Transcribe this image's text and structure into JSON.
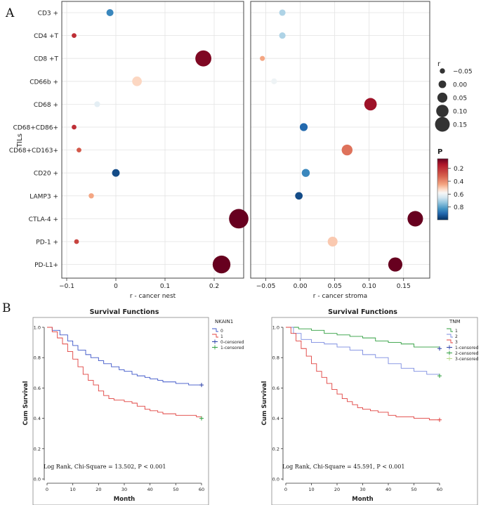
{
  "panel_labels": {
    "a": "A",
    "b": "B"
  },
  "chart_data": [
    {
      "type": "scatter",
      "subtype": "bubble",
      "title": "",
      "ylabel": "TILs",
      "categories": [
        "CD3 +",
        "CD4 +T",
        "CD8 +T",
        "CD66b +",
        "CD68 +",
        "CD68+CD86+",
        "CD68+CD163+",
        "CD20 +",
        "LAMP3 +",
        "CTLA-4 +",
        "PD-1 +",
        "PD-L1+"
      ],
      "panels": [
        {
          "xlabel": "r - cancer nest",
          "xlim": [
            -0.11,
            0.26
          ],
          "xticks": [
            -0.1,
            0,
            0.1,
            0.2
          ],
          "xtick_labels": [
            "−0.1",
            "0",
            "0.1",
            "0.2"
          ],
          "points": [
            {
              "y": "CD3 +",
              "r": -0.012,
              "p": 0.85
            },
            {
              "y": "CD4 +T",
              "r": -0.085,
              "p": 0.2
            },
            {
              "y": "CD8 +T",
              "r": 0.178,
              "p": 0.08
            },
            {
              "y": "CD66b +",
              "r": 0.043,
              "p": 0.52
            },
            {
              "y": "CD68 +",
              "r": -0.038,
              "p": 0.62
            },
            {
              "y": "CD68+CD86+",
              "r": -0.085,
              "p": 0.2
            },
            {
              "y": "CD68+CD163+",
              "r": -0.075,
              "p": 0.3
            },
            {
              "y": "CD20 +",
              "r": 0.0,
              "p": 0.95
            },
            {
              "y": "LAMP3 +",
              "r": -0.05,
              "p": 0.45
            },
            {
              "y": "CTLA-4 +",
              "r": 0.25,
              "p": 0.02
            },
            {
              "y": "PD-1 +",
              "r": -0.08,
              "p": 0.25
            },
            {
              "y": "PD-L1+",
              "r": 0.215,
              "p": 0.03
            }
          ]
        },
        {
          "xlabel": "r - cancer stroma",
          "xlim": [
            -0.072,
            0.188
          ],
          "xticks": [
            -0.05,
            0.0,
            0.05,
            0.1,
            0.15
          ],
          "xtick_labels": [
            "−0.05",
            "0.00",
            "0.05",
            "0.10",
            "0.15"
          ],
          "points": [
            {
              "y": "CD3 +",
              "r": -0.026,
              "p": 0.7
            },
            {
              "y": "CD4 +T",
              "r": -0.026,
              "p": 0.7
            },
            {
              "y": "CD8 +T",
              "r": -0.055,
              "p": 0.45
            },
            {
              "y": "CD66b +",
              "r": -0.038,
              "p": 0.6
            },
            {
              "y": "CD68 +",
              "r": 0.102,
              "p": 0.12
            },
            {
              "y": "CD68+CD86+",
              "r": 0.005,
              "p": 0.9
            },
            {
              "y": "CD68+CD163+",
              "r": 0.068,
              "p": 0.35
            },
            {
              "y": "CD20 +",
              "r": 0.008,
              "p": 0.85
            },
            {
              "y": "LAMP3 +",
              "r": -0.002,
              "p": 0.95
            },
            {
              "y": "CTLA-4 +",
              "r": 0.167,
              "p": 0.03
            },
            {
              "y": "PD-1 +",
              "r": 0.047,
              "p": 0.5
            },
            {
              "y": "PD-L1+",
              "r": 0.138,
              "p": 0.05
            }
          ]
        }
      ],
      "size_legend": {
        "title": "r",
        "values": [
          -0.05,
          0.0,
          0.05,
          0.1,
          0.15
        ],
        "labels": [
          "−0.05",
          "0.00",
          "0.05",
          "0.10",
          "0.15"
        ]
      },
      "color_legend": {
        "title": "P",
        "range": [
          0.05,
          1.0
        ],
        "ticks": [
          0.2,
          0.4,
          0.6,
          0.8
        ],
        "tick_labels": [
          "0.2",
          "0.4",
          "0.6",
          "0.8"
        ]
      },
      "colors": {
        "low_p": "#67001f",
        "mid": "#f7f7f7",
        "high_p": "#053061"
      }
    },
    {
      "type": "line",
      "subtype": "kaplan-meier",
      "title": "Survival Functions",
      "xlabel": "Month",
      "ylabel": "Cum Survival",
      "xlim": [
        0,
        60
      ],
      "ylim": [
        0,
        1.0
      ],
      "xticks": [
        0,
        10,
        20,
        30,
        40,
        50,
        60
      ],
      "yticks": [
        0.0,
        0.2,
        0.4,
        0.6,
        0.8,
        1.0
      ],
      "ytick_labels": [
        "0.0",
        "0.2",
        "0.4",
        "0.6",
        "0.8",
        "1.0"
      ],
      "legend_title": "NKAIN1",
      "legend": [
        "0",
        "1",
        "0-censored",
        "1-censored"
      ],
      "series": [
        {
          "name": "0",
          "color": "#3b54c8",
          "censor_color": "#2a3fa8",
          "x": [
            0,
            2,
            5,
            8,
            10,
            12,
            15,
            17,
            20,
            22,
            25,
            28,
            30,
            33,
            35,
            38,
            40,
            43,
            45,
            48,
            50,
            53,
            55,
            58,
            60
          ],
          "y": [
            1.0,
            0.98,
            0.95,
            0.91,
            0.88,
            0.85,
            0.82,
            0.8,
            0.78,
            0.76,
            0.74,
            0.72,
            0.71,
            0.69,
            0.68,
            0.67,
            0.66,
            0.65,
            0.64,
            0.64,
            0.63,
            0.63,
            0.62,
            0.62,
            0.62
          ]
        },
        {
          "name": "1",
          "color": "#e0403e",
          "censor_color": "#2e9e3e",
          "x": [
            0,
            2,
            4,
            6,
            8,
            10,
            12,
            14,
            16,
            18,
            20,
            22,
            24,
            26,
            28,
            30,
            33,
            35,
            38,
            40,
            43,
            45,
            48,
            50,
            53,
            55,
            58,
            60
          ],
          "y": [
            1.0,
            0.97,
            0.93,
            0.89,
            0.84,
            0.79,
            0.74,
            0.69,
            0.65,
            0.62,
            0.58,
            0.55,
            0.53,
            0.52,
            0.52,
            0.51,
            0.5,
            0.48,
            0.46,
            0.45,
            0.44,
            0.43,
            0.43,
            0.42,
            0.42,
            0.42,
            0.41,
            0.4
          ]
        }
      ],
      "annotation": "Log Rank, Chi-Square = 13.502, P < 0.001"
    },
    {
      "type": "line",
      "subtype": "kaplan-meier",
      "title": "Survival Functions",
      "xlabel": "Month",
      "ylabel": "Cum Survival",
      "xlim": [
        0,
        60
      ],
      "ylim": [
        0,
        1.0
      ],
      "xticks": [
        0,
        10,
        20,
        30,
        40,
        50,
        60
      ],
      "yticks": [
        0.0,
        0.2,
        0.4,
        0.6,
        0.8,
        1.0
      ],
      "ytick_labels": [
        "0.0",
        "0.2",
        "0.4",
        "0.6",
        "0.8",
        "1.0"
      ],
      "legend_title": "TNM",
      "legend": [
        "1",
        "2",
        "3",
        "1-censored",
        "2-censored",
        "3-censored"
      ],
      "series": [
        {
          "name": "1",
          "color": "#2e9e3e",
          "censor_color": "#2a3fa8",
          "x": [
            0,
            5,
            10,
            15,
            20,
            25,
            30,
            35,
            40,
            45,
            50,
            55,
            60
          ],
          "y": [
            1.0,
            0.99,
            0.98,
            0.96,
            0.95,
            0.94,
            0.93,
            0.91,
            0.9,
            0.89,
            0.87,
            0.87,
            0.86
          ]
        },
        {
          "name": "2",
          "color": "#7b8be0",
          "censor_color": "#2e9e3e",
          "x": [
            0,
            3,
            6,
            10,
            15,
            20,
            25,
            30,
            35,
            40,
            45,
            50,
            55,
            60
          ],
          "y": [
            1.0,
            0.96,
            0.92,
            0.9,
            0.89,
            0.87,
            0.85,
            0.82,
            0.8,
            0.76,
            0.73,
            0.71,
            0.69,
            0.68
          ]
        },
        {
          "name": "3",
          "color": "#e0403e",
          "censor_color": "#e0403e",
          "x": [
            0,
            2,
            4,
            6,
            8,
            10,
            12,
            14,
            16,
            18,
            20,
            22,
            24,
            26,
            28,
            30,
            33,
            36,
            40,
            43,
            46,
            50,
            53,
            56,
            60
          ],
          "y": [
            1.0,
            0.96,
            0.91,
            0.86,
            0.81,
            0.76,
            0.71,
            0.67,
            0.63,
            0.59,
            0.56,
            0.53,
            0.51,
            0.49,
            0.47,
            0.46,
            0.45,
            0.44,
            0.42,
            0.41,
            0.41,
            0.4,
            0.4,
            0.39,
            0.39
          ]
        }
      ],
      "annotation": "Log Rank, Chi-Square = 45.591, P < 0.001"
    }
  ]
}
